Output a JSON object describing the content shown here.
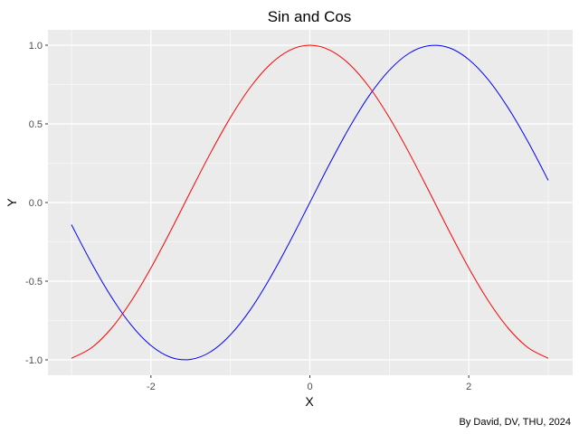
{
  "chart_data": {
    "type": "line",
    "title": "Sin and Cos",
    "xlabel": "X",
    "ylabel": "Y",
    "caption": "By David, DV, THU, 2024",
    "xlim": [
      -3.0,
      3.0
    ],
    "ylim": [
      -1.0,
      1.0
    ],
    "x_ticks": [
      -2,
      0,
      2
    ],
    "x_tick_labels": [
      "-2",
      "0",
      "2"
    ],
    "y_ticks": [
      -1.0,
      -0.5,
      0.0,
      0.5,
      1.0
    ],
    "y_tick_labels": [
      "-1.0",
      "-0.5",
      "0.0",
      "0.5",
      "1.0"
    ],
    "grid": true,
    "panel_background": "#ebebeb",
    "grid_color": "#ffffff",
    "x": [
      -3.0,
      -2.75,
      -2.5,
      -2.25,
      -2.0,
      -1.75,
      -1.5,
      -1.25,
      -1.0,
      -0.75,
      -0.5,
      -0.25,
      0.0,
      0.25,
      0.5,
      0.75,
      1.0,
      1.25,
      1.5,
      1.75,
      2.0,
      2.25,
      2.5,
      2.75,
      3.0
    ],
    "series": [
      {
        "color": "#0000ff",
        "values": [
          -0.141,
          -0.382,
          -0.598,
          -0.778,
          -0.909,
          -0.984,
          -0.997,
          -0.949,
          -0.841,
          -0.682,
          -0.479,
          -0.247,
          0.0,
          0.247,
          0.479,
          0.682,
          0.841,
          0.949,
          0.997,
          0.984,
          0.909,
          0.778,
          0.598,
          0.382,
          0.141
        ]
      },
      {
        "color": "#ff0000",
        "values": [
          -0.99,
          -0.924,
          -0.801,
          -0.628,
          -0.416,
          -0.178,
          0.071,
          0.315,
          0.54,
          0.732,
          0.878,
          0.969,
          1.0,
          0.969,
          0.878,
          0.732,
          0.54,
          0.315,
          0.071,
          -0.178,
          -0.416,
          -0.628,
          -0.801,
          -0.924,
          -0.99
        ]
      }
    ]
  }
}
